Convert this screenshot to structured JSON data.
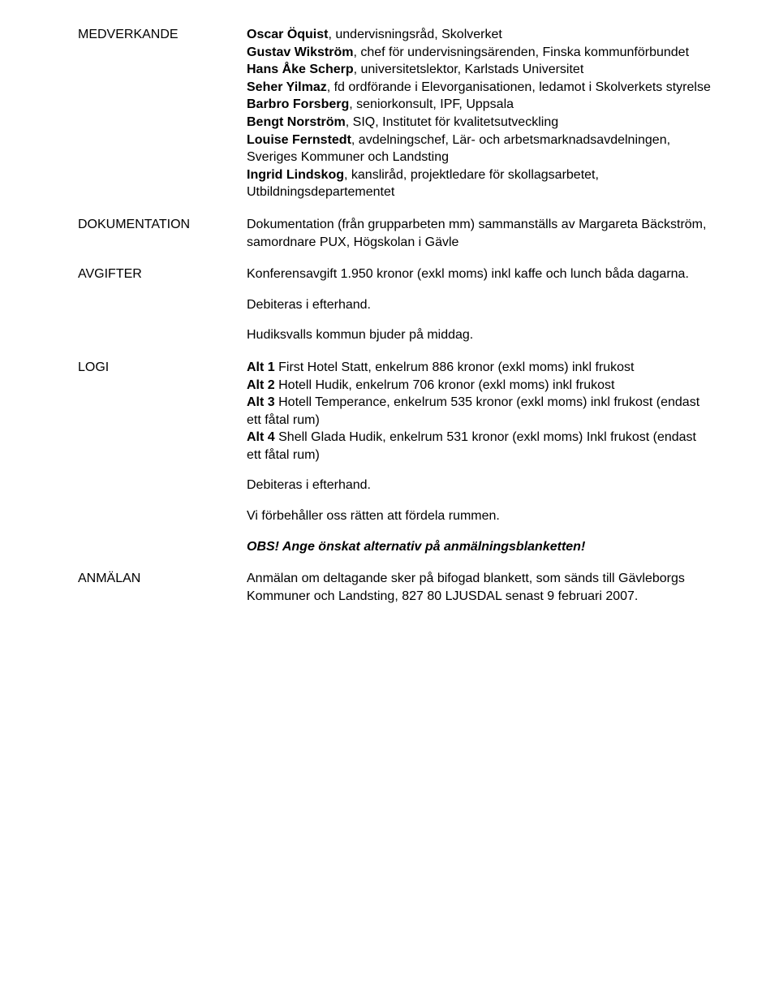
{
  "sections": {
    "medverkande": {
      "label": "MEDVERKANDE",
      "people": [
        {
          "name": "Oscar Öquist",
          "role": ", undervisningsråd, Skolverket"
        },
        {
          "name": "Gustav Wikström",
          "role": ", chef för undervisningsärenden, Finska kommunförbundet"
        },
        {
          "name": "Hans Åke Scherp",
          "role": ", universitetslektor, Karlstads Universitet"
        },
        {
          "name": "Seher Yilmaz",
          "role": ", fd ordförande i Elevorganisationen, ledamot i Skolverkets styrelse"
        },
        {
          "name": "Barbro Forsberg",
          "role": ", seniorkonsult, IPF, Uppsala"
        },
        {
          "name": "Bengt Norström",
          "role": ", SIQ, Institutet för kvalitetsutveckling"
        },
        {
          "name": "Louise Fernstedt",
          "role": ", avdelningschef, Lär- och arbetsmarknadsavdelningen, Sveriges Kommuner och Landsting"
        },
        {
          "name": "Ingrid Lindskog",
          "role": ", kansliråd, projektledare för skollagsarbetet, Utbildningsdepartementet"
        }
      ]
    },
    "dokumentation": {
      "label": "DOKUMENTATION",
      "text": "Dokumentation (från grupparbeten mm) sammanställs av Margareta Bäckström, samordnare PUX, Högskolan i Gävle"
    },
    "avgifter": {
      "label": "AVGIFTER",
      "p1": "Konferensavgift 1.950 kronor (exkl moms) inkl kaffe och lunch båda dagarna.",
      "p2": "Debiteras i efterhand.",
      "p3": "Hudiksvalls kommun bjuder på middag."
    },
    "logi": {
      "label": "LOGI",
      "alts": [
        {
          "lead": "Alt 1",
          "rest": " First Hotel Statt, enkelrum 886 kronor (exkl moms) inkl frukost"
        },
        {
          "lead": "Alt 2",
          "rest": " Hotell Hudik, enkelrum 706 kronor (exkl moms) inkl frukost"
        },
        {
          "lead": "Alt 3",
          "rest": " Hotell Temperance, enkelrum 535 kronor (exkl moms) inkl frukost (endast ett fåtal rum)"
        },
        {
          "lead": "Alt 4",
          "rest": " Shell Glada Hudik, enkelrum 531 kronor (exkl moms) Inkl frukost (endast ett fåtal rum)"
        }
      ],
      "p2": "Debiteras i efterhand.",
      "p3": "Vi förbehåller oss rätten att fördela rummen.",
      "obs": "OBS!  Ange önskat alternativ på anmälningsblanketten!"
    },
    "anmalan": {
      "label": "ANMÄLAN",
      "text": "Anmälan om deltagande sker på bifogad blankett, som sänds till Gävleborgs Kommuner och Landsting, 827 80 LJUSDAL senast 9 februari 2007."
    }
  }
}
